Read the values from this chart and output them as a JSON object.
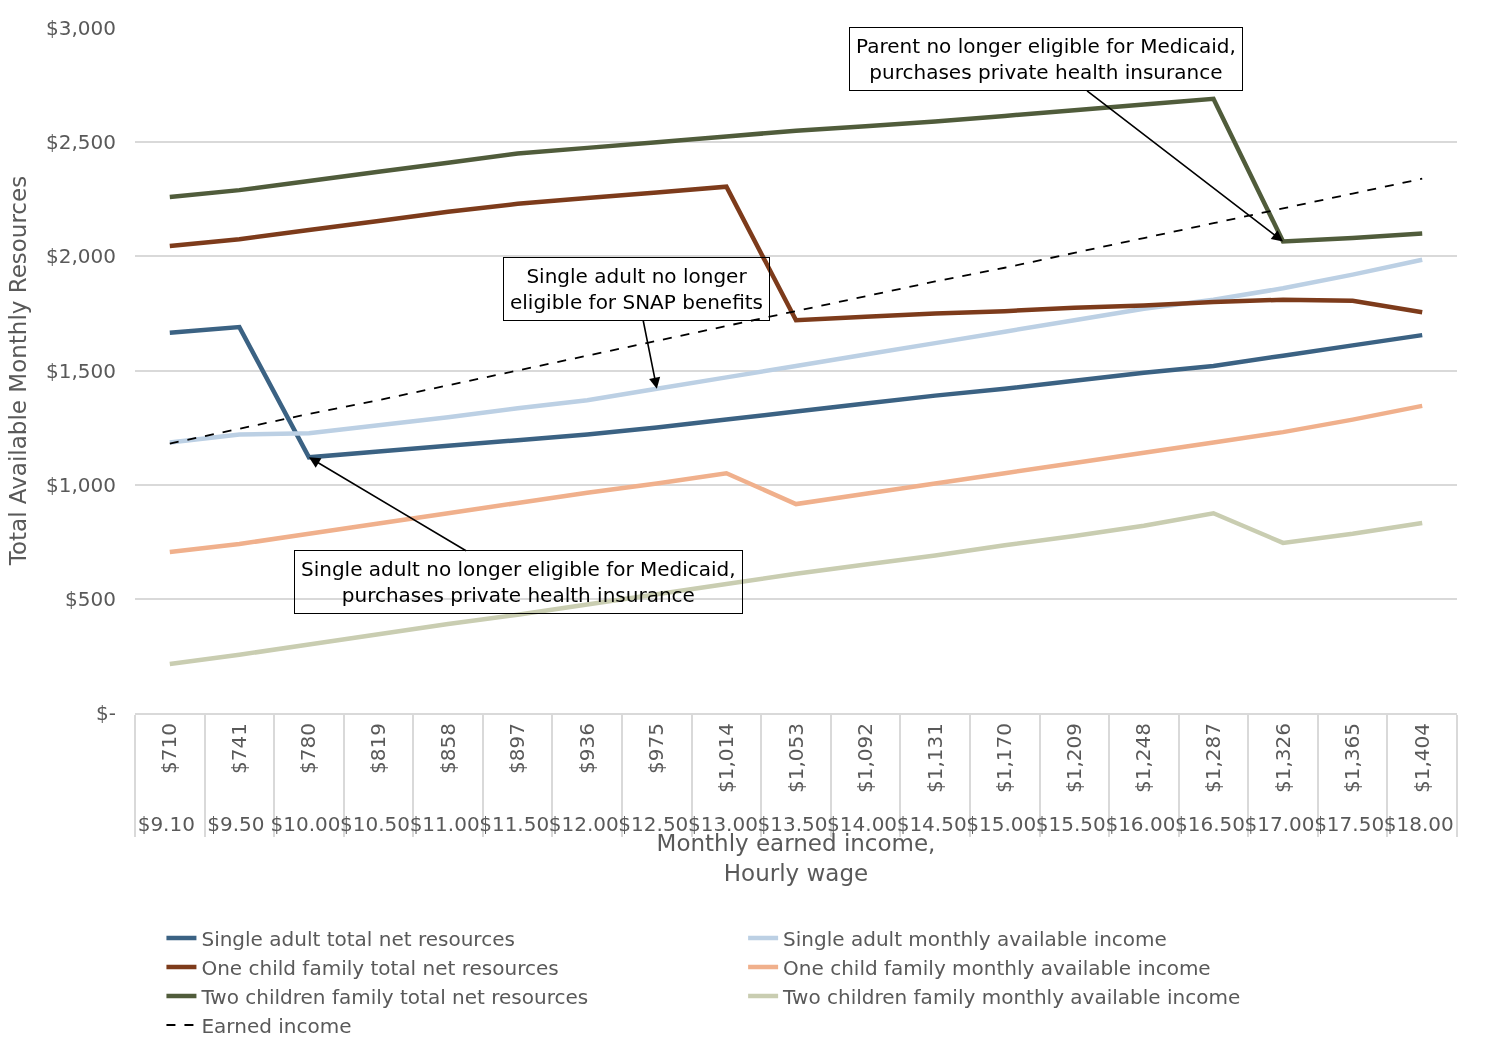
{
  "chart_data": {
    "type": "line",
    "xlabel": "Monthly earned income,\nHourly wage",
    "ylabel": "Total Available Monthly Resources",
    "categories": [
      "$710\n$9.10",
      "$741\n$9.50",
      "$780\n$10.00",
      "$819\n$10.50",
      "$858\n$11.00",
      "$897\n$11.50",
      "$936\n$12.00",
      "$975\n$12.50",
      "$1,014\n$13.00",
      "$1,053\n$13.50",
      "$1,092\n$14.00",
      "$1,131\n$14.50",
      "$1,170\n$15.00",
      "$1,209\n$15.50",
      "$1,248\n$16.00",
      "$1,287\n$16.50",
      "$1,326\n$17.00",
      "$1,365\n$17.50",
      "$1,404\n$18.00"
    ],
    "series": [
      {
        "name": "Single adult total net resources",
        "color": "#3b6283",
        "values": [
          1665,
          1690,
          1120,
          1145,
          1170,
          1195,
          1220,
          1250,
          1285,
          1320,
          1355,
          1390,
          1420,
          1455,
          1490,
          1520,
          1565,
          1610,
          1655
        ]
      },
      {
        "name": "Single adult monthly available income",
        "color": "#bcd0e4",
        "values": [
          1185,
          1220,
          1225,
          1260,
          1295,
          1335,
          1370,
          1420,
          1470,
          1520,
          1570,
          1620,
          1670,
          1720,
          1770,
          1810,
          1860,
          1920,
          1985
        ]
      },
      {
        "name": "One child family total net resources",
        "color": "#7d3b1b",
        "values": [
          2045,
          2075,
          2115,
          2155,
          2195,
          2230,
          2255,
          2280,
          2305,
          1720,
          1735,
          1750,
          1760,
          1775,
          1785,
          1800,
          1810,
          1805,
          1755
        ]
      },
      {
        "name": "One child family monthly available income",
        "color": "#f0b08c",
        "values": [
          705,
          740,
          785,
          830,
          875,
          920,
          965,
          1005,
          1050,
          915,
          960,
          1005,
          1050,
          1095,
          1140,
          1185,
          1230,
          1285,
          1345
        ]
      },
      {
        "name": "Two children family total net resources",
        "color": "#505c3b",
        "values": [
          2260,
          2290,
          2330,
          2370,
          2410,
          2450,
          2475,
          2500,
          2525,
          2550,
          2570,
          2590,
          2615,
          2640,
          2665,
          2690,
          2065,
          2080,
          2100
        ]
      },
      {
        "name": "Two children family monthly available income",
        "color": "#c9cdb1",
        "values": [
          215,
          255,
          300,
          345,
          390,
          430,
          475,
          520,
          565,
          610,
          650,
          690,
          735,
          775,
          820,
          875,
          745,
          785,
          832
        ]
      },
      {
        "name": "Earned income",
        "color": "#000000",
        "line_style": "dashed",
        "values": [
          1180,
          1245,
          1310,
          1370,
          1435,
          1500,
          1565,
          1630,
          1695,
          1760,
          1825,
          1890,
          1950,
          2015,
          2080,
          2145,
          2210,
          2275,
          2340
        ]
      }
    ],
    "ylim": [
      0,
      3000
    ],
    "yticks": [
      {
        "value": 0,
        "label": "$-"
      },
      {
        "value": 500,
        "label": "$500"
      },
      {
        "value": 1000,
        "label": "$1,000"
      },
      {
        "value": 1500,
        "label": "$1,500"
      },
      {
        "value": 2000,
        "label": "$2,000"
      },
      {
        "value": 2500,
        "label": "$2,500"
      },
      {
        "value": 3000,
        "label": "$3,000"
      }
    ],
    "grid": "y",
    "legend": "bottom",
    "marker": "none",
    "annotations": [
      {
        "text": "Single adult no longer\neligible for SNAP benefits",
        "x": "$975\n$12.50",
        "y": 1420
      },
      {
        "text": "Single adult no longer eligible for Medicaid,\npurchases private health insurance",
        "x": "$780\n$10.00",
        "y": 1120
      },
      {
        "text": "Parent no longer eligible for Medicaid,\npurchases private health insurance",
        "x": "$1,326\n$17.00",
        "y": 2065
      }
    ]
  }
}
